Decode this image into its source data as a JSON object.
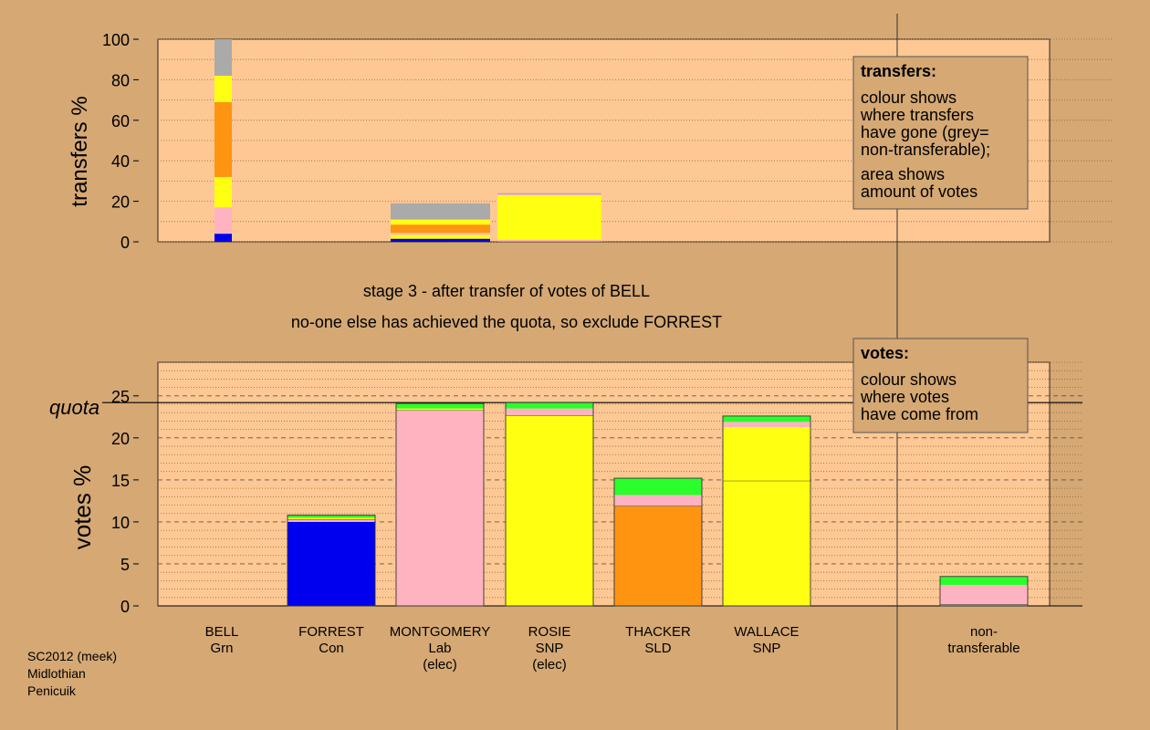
{
  "colors": {
    "background": "#d5a874",
    "plot": "#fec895",
    "Grn": "#2bff2b",
    "Con": "#0000ee",
    "Lab": "#ffb3c1",
    "SNP": "#ffff11",
    "SLD": "#ff9411",
    "nontransferable": "#aaaaaa"
  },
  "stage_text": "stage 3 - after transfer of votes of BELL",
  "stage_subtext": "no-one else has achieved the quota, so exclude FORREST",
  "footer": [
    "SC2012 (meek)",
    "Midlothian",
    "Penicuik"
  ],
  "chart_data": [
    {
      "type": "bar",
      "stacked": true,
      "panel": "transfers",
      "ylabel": "transfers %",
      "ylim": [
        0,
        100
      ],
      "yticks": [
        0,
        20,
        40,
        60,
        80,
        100
      ],
      "grid": "dotted",
      "legend_box": {
        "title": "transfers:",
        "lines1": [
          "colour shows",
          "where transfers",
          "have gone (grey=",
          "non-transferable);"
        ],
        "lines2": [
          "area shows",
          "amount of votes"
        ]
      },
      "bars": [
        {
          "from": "BELL",
          "width_fraction": 0.17,
          "segments": [
            {
              "party": "Con",
              "value": 4
            },
            {
              "party": "Lab",
              "value": 13
            },
            {
              "party": "SNP",
              "value": 15
            },
            {
              "party": "SLD",
              "value": 37
            },
            {
              "party": "SNP",
              "value": 13
            },
            {
              "party": "nontransferable",
              "value": 18
            }
          ]
        },
        {
          "from": "FORREST",
          "width_fraction": 1.0,
          "segments": [
            {
              "party": "Con",
              "value": 1.5
            },
            {
              "party": "SNP",
              "value": 2
            },
            {
              "party": "Lab",
              "value": 1
            },
            {
              "party": "SLD",
              "value": 4
            },
            {
              "party": "SNP",
              "value": 2.5
            },
            {
              "party": "nontransferable",
              "value": 8
            }
          ]
        },
        {
          "from": "FORREST",
          "width_fraction": 1.0,
          "segments": [
            {
              "party": "SLD",
              "value": 0.5
            },
            {
              "party": "Lab",
              "value": 0.5
            },
            {
              "party": "SNP",
              "value": 22
            },
            {
              "party": "Lab",
              "value": 0.5
            },
            {
              "party": "nontransferable",
              "value": 0.5
            }
          ]
        }
      ]
    },
    {
      "type": "bar",
      "stacked": true,
      "panel": "votes",
      "ylabel": "votes %",
      "ylim": [
        0,
        29
      ],
      "yticks": [
        0,
        5,
        10,
        15,
        20,
        25
      ],
      "quota": 24.2,
      "quota_label": "quota",
      "grid": "dashed",
      "legend_box": {
        "title": "votes:",
        "lines1": [
          "colour shows",
          "where votes",
          "have come from"
        ],
        "lines2": []
      },
      "categories": [
        {
          "name": "BELL",
          "party": "Grn",
          "extra": ""
        },
        {
          "name": "FORREST",
          "party": "Con",
          "extra": ""
        },
        {
          "name": "MONTGOMERY",
          "party": "Lab",
          "extra": "(elec)"
        },
        {
          "name": "ROSIE",
          "party": "SNP",
          "extra": "(elec)"
        },
        {
          "name": "THACKER",
          "party": "SLD",
          "extra": ""
        },
        {
          "name": "WALLACE",
          "party": "SNP",
          "extra": ""
        },
        {
          "name": "non-",
          "party": "transferable",
          "extra": ""
        }
      ],
      "segments": [
        [],
        [
          {
            "party": "Con",
            "value": 10.0,
            "line": false
          },
          {
            "party": "Lab",
            "value": 0.3,
            "line": true
          },
          {
            "party": "SNP",
            "value": 0.2,
            "line": false
          },
          {
            "party": "Grn",
            "value": 0.3,
            "line": false
          }
        ],
        [
          {
            "party": "Lab",
            "value": 23.3,
            "line": true
          },
          {
            "party": "SNP",
            "value": 0.2,
            "line": false
          },
          {
            "party": "Grn",
            "value": 0.6,
            "line": false
          }
        ],
        [
          {
            "party": "SNP",
            "value": 22.7,
            "line": true
          },
          {
            "party": "Lab",
            "value": 0.8,
            "line": false
          },
          {
            "party": "Grn",
            "value": 0.7,
            "line": false
          }
        ],
        [
          {
            "party": "SLD",
            "value": 11.9,
            "line": true
          },
          {
            "party": "Lab",
            "value": 0.3,
            "line": false
          },
          {
            "party": "Lab",
            "value": 1.0,
            "line": false
          },
          {
            "party": "Grn",
            "value": 2.0,
            "line": false
          }
        ],
        [
          {
            "party": "SNP",
            "value": 14.9,
            "line": true
          },
          {
            "party": "SNP",
            "value": 6.4,
            "line": false
          },
          {
            "party": "Lab",
            "value": 0.6,
            "line": false
          },
          {
            "party": "Grn",
            "value": 0.7,
            "line": false
          }
        ],
        [
          {
            "party": "nontransferable",
            "value": 0.2,
            "line": true
          },
          {
            "party": "Lab",
            "value": 2.3,
            "line": false
          },
          {
            "party": "Grn",
            "value": 1.0,
            "line": false
          }
        ]
      ]
    }
  ]
}
